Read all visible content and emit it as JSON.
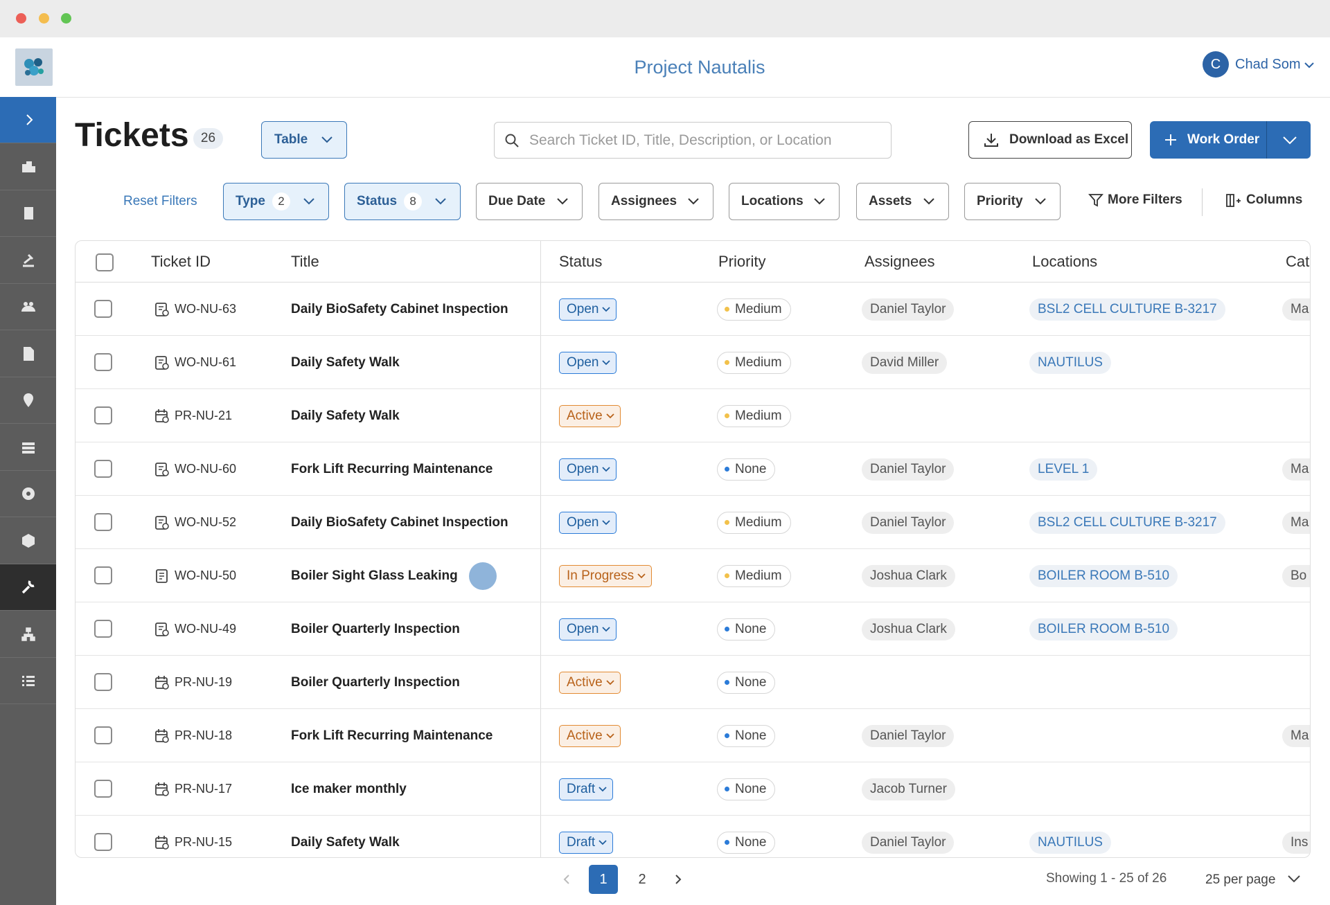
{
  "header": {
    "title": "Project Nautalis",
    "user_initial": "C",
    "user_name": "Chad Som"
  },
  "toolbar": {
    "heading": "Tickets",
    "count": 26,
    "view": "Table",
    "search_placeholder": "Search Ticket ID, Title, Description, or Location",
    "download": "Download as Excel",
    "create": "Work Order"
  },
  "filters": {
    "reset": "Reset Filters",
    "buttons": [
      {
        "label": "Type",
        "count": 2
      },
      {
        "label": "Status",
        "count": 8
      },
      {
        "label": "Due Date"
      },
      {
        "label": "Assignees"
      },
      {
        "label": "Locations"
      },
      {
        "label": "Assets"
      },
      {
        "label": "Priority"
      }
    ],
    "more": "More Filters",
    "columns": "Columns"
  },
  "table": {
    "columns": [
      "Ticket ID",
      "Title",
      "Status",
      "Priority",
      "Assignees",
      "Locations",
      "Cate"
    ],
    "rows": [
      {
        "icon": "work-order",
        "id": "WO-NU-63",
        "title": "Daily BioSafety Cabinet Inspection",
        "status": "Open",
        "status_color": "#2b7bd8",
        "priority": "Medium",
        "priority_color": "#f2c14b",
        "assignee": "Daniel Taylor",
        "location": "BSL2 CELL CULTURE B-3217",
        "category": "Ma"
      },
      {
        "icon": "work-order",
        "id": "WO-NU-61",
        "title": "Daily Safety Walk",
        "status": "Open",
        "status_color": "#2b7bd8",
        "priority": "Medium",
        "priority_color": "#f2c14b",
        "assignee": "David Miller",
        "location": "NAUTILUS",
        "category": null
      },
      {
        "icon": "preventive",
        "id": "PR-NU-21",
        "title": "Daily Safety Walk",
        "status": "Active",
        "status_color": "#e28a32",
        "priority": "Medium",
        "priority_color": "#f2c14b",
        "assignee": null,
        "location": null,
        "category": null
      },
      {
        "icon": "work-order",
        "id": "WO-NU-60",
        "title": "Fork Lift Recurring Maintenance",
        "status": "Open",
        "status_color": "#2b7bd8",
        "priority": "None",
        "priority_color": "#2b7bd8",
        "assignee": "Daniel Taylor",
        "location": "LEVEL 1",
        "category": "Ma"
      },
      {
        "icon": "work-order",
        "id": "WO-NU-52",
        "title": "Daily BioSafety Cabinet Inspection",
        "status": "Open",
        "status_color": "#2b7bd8",
        "priority": "Medium",
        "priority_color": "#f2c14b",
        "assignee": "Daniel Taylor",
        "location": "BSL2 CELL CULTURE B-3217",
        "category": "Ma"
      },
      {
        "icon": "request",
        "id": "WO-NU-50",
        "title": "Boiler Sight Glass Leaking",
        "status": "In Progress",
        "status_color": "#e28a32",
        "priority": "Medium",
        "priority_color": "#f2c14b",
        "assignee": "Joshua Clark",
        "location": "BOILER ROOM B-510",
        "category": "Bo"
      },
      {
        "icon": "work-order",
        "id": "WO-NU-49",
        "title": "Boiler Quarterly Inspection",
        "status": "Open",
        "status_color": "#2b7bd8",
        "priority": "None",
        "priority_color": "#2b7bd8",
        "assignee": "Joshua Clark",
        "location": "BOILER ROOM B-510",
        "category": null
      },
      {
        "icon": "preventive",
        "id": "PR-NU-19",
        "title": "Boiler Quarterly Inspection",
        "status": "Active",
        "status_color": "#e28a32",
        "priority": "None",
        "priority_color": "#2b7bd8",
        "assignee": null,
        "location": null,
        "category": null
      },
      {
        "icon": "preventive",
        "id": "PR-NU-18",
        "title": "Fork Lift Recurring Maintenance",
        "status": "Active",
        "status_color": "#e28a32",
        "priority": "None",
        "priority_color": "#2b7bd8",
        "assignee": "Daniel Taylor",
        "location": null,
        "category": "Ma"
      },
      {
        "icon": "preventive",
        "id": "PR-NU-17",
        "title": "Ice maker monthly",
        "status": "Draft",
        "status_color": "#2b7bd8",
        "priority": "None",
        "priority_color": "#2b7bd8",
        "assignee": "Jacob Turner",
        "location": null,
        "category": null
      },
      {
        "icon": "preventive",
        "id": "PR-NU-15",
        "title": "Daily Safety Walk",
        "status": "Draft",
        "status_color": "#2b7bd8",
        "priority": "None",
        "priority_color": "#2b7bd8",
        "assignee": "Daniel Taylor",
        "location": "NAUTILUS",
        "category": "Ins"
      }
    ]
  },
  "pagination": {
    "pages": [
      1,
      2
    ],
    "current": 1,
    "summary": "Showing 1 - 25 of 26",
    "per_page": "25 per page"
  }
}
